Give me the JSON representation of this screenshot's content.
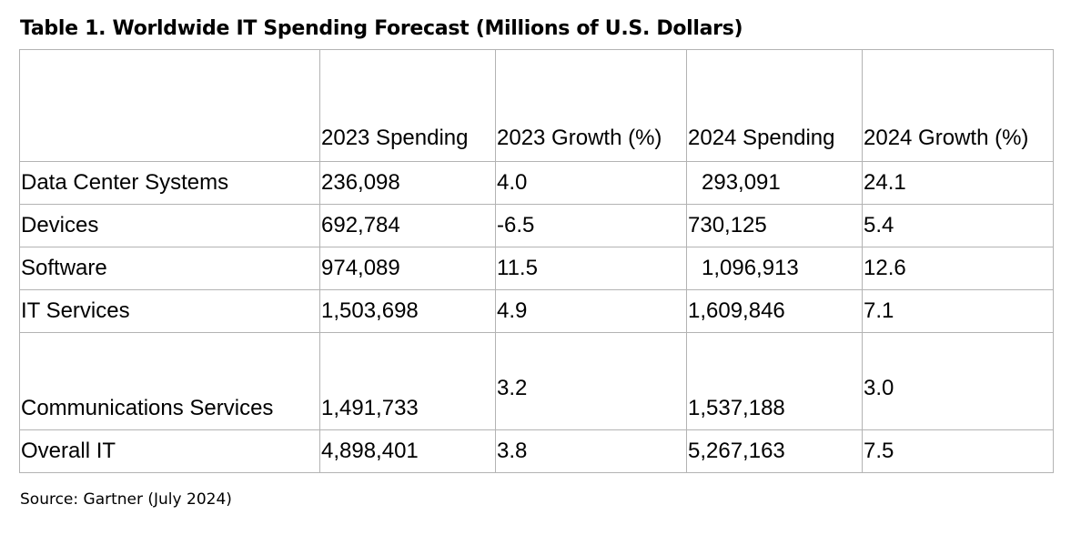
{
  "title": "Table 1. Worldwide IT Spending Forecast (Millions of U.S. Dollars)",
  "table": {
    "headers": [
      "",
      "2023 Spending",
      "2023 Growth (%)",
      "2024 Spending",
      "2024 Growth (%)"
    ],
    "rows": [
      [
        "Data Center Systems",
        "236,098",
        "4.0",
        "293,091",
        "24.1"
      ],
      [
        "Devices",
        "692,784",
        "-6.5",
        "730,125",
        "5.4"
      ],
      [
        "Software",
        "974,089",
        "11.5",
        "1,096,913",
        "12.6"
      ],
      [
        "IT Services",
        "1,503,698",
        "4.9",
        "1,609,846",
        "7.1"
      ],
      [
        "Communications Services",
        "1,491,733",
        "3.2",
        "1,537,188",
        "3.0"
      ],
      [
        "Overall IT",
        "4,898,401",
        "3.8",
        "5,267,163",
        "7.5"
      ]
    ]
  },
  "source": "Source: Gartner (July 2024)"
}
